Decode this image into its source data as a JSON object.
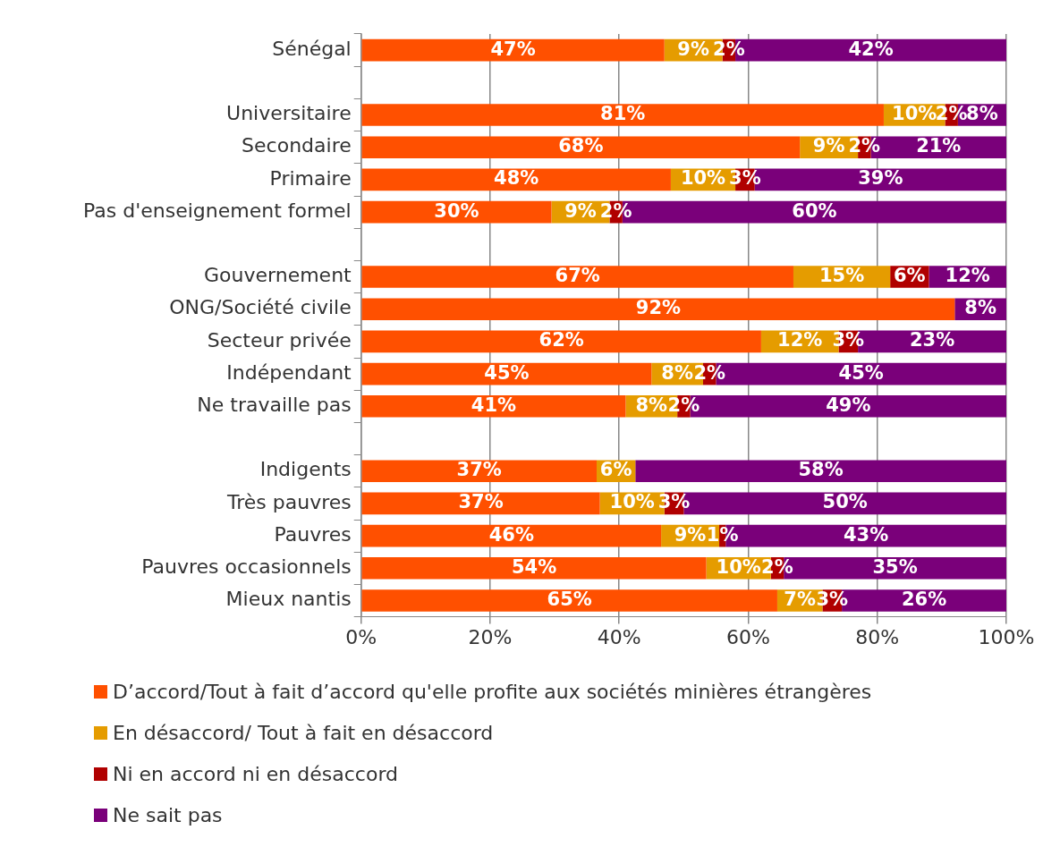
{
  "chart_data": {
    "type": "bar",
    "orientation": "horizontal",
    "stacked": true,
    "grid": "x",
    "legend": "bottom",
    "categories": [
      "Sénégal",
      null,
      "Universitaire",
      "Secondaire",
      "Primaire",
      "Pas d'enseignement formel",
      null,
      "Gouvernement",
      "ONG/Société civile",
      "Secteur privée",
      "Indépendant",
      "Ne travaille pas",
      null,
      "Indigents",
      "Très pauvres",
      "Pauvres",
      "Pauvres occasionnels",
      "Mieux nantis"
    ],
    "xlim": [
      0,
      100
    ],
    "xticks": [
      {
        "value": 0,
        "label": "0%"
      },
      {
        "value": 20,
        "label": "20%"
      },
      {
        "value": 40,
        "label": "40%"
      },
      {
        "value": 60,
        "label": "60%"
      },
      {
        "value": 80,
        "label": "80%"
      },
      {
        "value": 100,
        "label": "100%"
      }
    ],
    "series": [
      {
        "name": "D’accord/Tout à fait d’accord qu'elle profite aux sociétés minières étrangères",
        "color": "#ff5000",
        "values": [
          47,
          null,
          81,
          68,
          48,
          29.5,
          null,
          67,
          92,
          62,
          45,
          41,
          null,
          36.5,
          37,
          46.5,
          53.5,
          64.5
        ],
        "value_labels": [
          "47%",
          null,
          "81%",
          "68%",
          "48%",
          "30%",
          null,
          "67%",
          "92%",
          "62%",
          "45%",
          "41%",
          null,
          "37%",
          "37%",
          "46%",
          "54%",
          "65%"
        ]
      },
      {
        "name": "En désaccord/ Tout à fait en désaccord",
        "color": "#e59c00",
        "values": [
          9,
          null,
          9.5,
          9,
          10,
          9,
          null,
          15,
          null,
          12,
          8,
          8,
          null,
          6,
          10,
          9,
          10,
          7
        ],
        "value_labels": [
          "9%",
          null,
          "10%",
          "9%",
          "10%",
          "9%",
          null,
          "15%",
          null,
          "12%",
          "8%",
          "8%",
          null,
          "6%",
          "10%",
          "9%",
          "10%",
          "7%"
        ]
      },
      {
        "name": "Ni en accord ni en désaccord",
        "color": "#b00000",
        "values": [
          2,
          null,
          2,
          2,
          3,
          2,
          null,
          6,
          null,
          3,
          2,
          2,
          null,
          null,
          3,
          1,
          2,
          3
        ],
        "value_labels": [
          "2%",
          null,
          "2%",
          "2%",
          "3%",
          "2%",
          null,
          "6%",
          null,
          "3%",
          "2%",
          "2%",
          null,
          null,
          "3%",
          "1%",
          "2%",
          "3%"
        ]
      },
      {
        "name": "Ne sait pas",
        "color": "#7a007a",
        "values": [
          42,
          null,
          7.5,
          21,
          39,
          59.5,
          null,
          12,
          8,
          23,
          45,
          49,
          null,
          57.5,
          50,
          43.5,
          34.5,
          25.5
        ],
        "value_labels": [
          "42%",
          null,
          "8%",
          "21%",
          "39%",
          "60%",
          null,
          "12%",
          "8%",
          "23%",
          "45%",
          "49%",
          null,
          "58%",
          "50%",
          "43%",
          "35%",
          "26%"
        ]
      }
    ]
  }
}
